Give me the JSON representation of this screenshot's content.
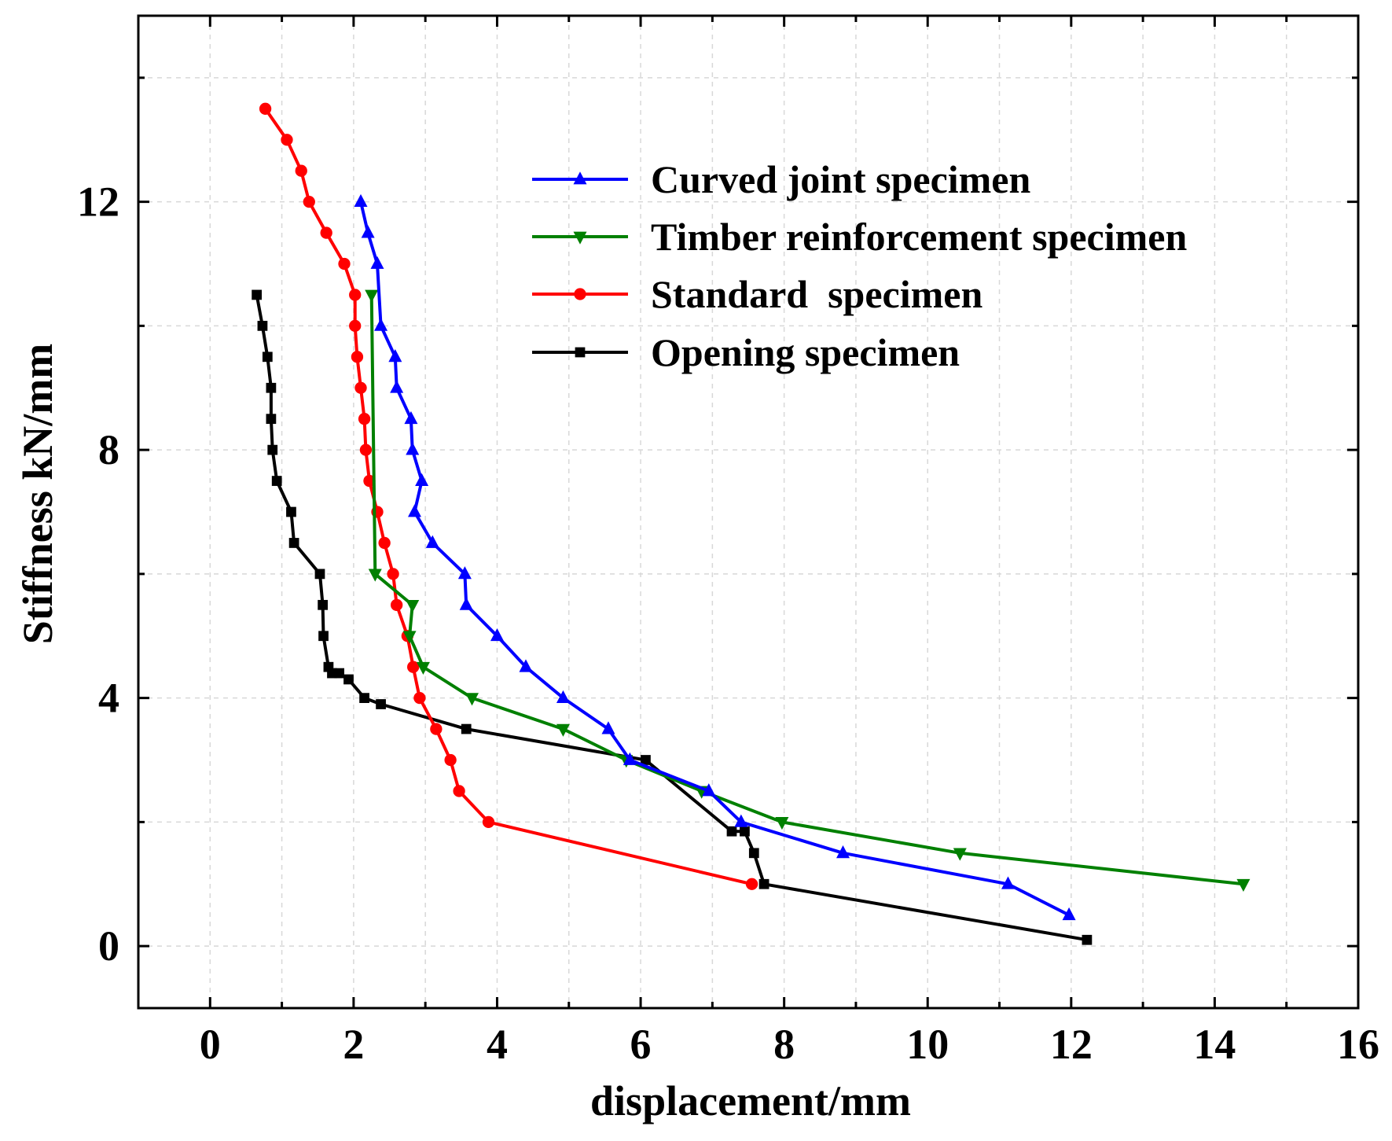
{
  "chart_data": {
    "type": "line",
    "title": "",
    "xlabel": "displacement/mm",
    "ylabel": "Stiffness kN/mm",
    "xlim": [
      -1,
      16
    ],
    "ylim": [
      -1,
      15
    ],
    "x_ticks": [
      0,
      2,
      4,
      6,
      8,
      10,
      12,
      14,
      16
    ],
    "x_tick_labels": [
      "0",
      "2",
      "4",
      "6",
      "8",
      "10",
      "12",
      "14",
      "16"
    ],
    "y_ticks": [
      0,
      4,
      8,
      12
    ],
    "y_tick_labels": [
      "0",
      "4",
      "8",
      "12"
    ],
    "grid": true,
    "legend_position": "top-right",
    "series": [
      {
        "name": "Curved joint specimen",
        "color": "#0000ff",
        "marker": "triangle-up",
        "points": [
          [
            2.1,
            12.0
          ],
          [
            2.2,
            11.5
          ],
          [
            2.33,
            11.0
          ],
          [
            2.38,
            10.0
          ],
          [
            2.58,
            9.5
          ],
          [
            2.6,
            9.0
          ],
          [
            2.8,
            8.5
          ],
          [
            2.82,
            8.0
          ],
          [
            2.95,
            7.5
          ],
          [
            2.85,
            7.0
          ],
          [
            3.1,
            6.5
          ],
          [
            3.55,
            6.0
          ],
          [
            3.57,
            5.5
          ],
          [
            4.0,
            5.0
          ],
          [
            4.4,
            4.5
          ],
          [
            4.92,
            4.0
          ],
          [
            5.55,
            3.5
          ],
          [
            5.85,
            3.0
          ],
          [
            6.95,
            2.5
          ],
          [
            7.4,
            2.0
          ],
          [
            8.82,
            1.5
          ],
          [
            11.12,
            1.0
          ],
          [
            11.97,
            0.5
          ]
        ]
      },
      {
        "name": "Timber reinforcement specimen",
        "color": "#008000",
        "marker": "triangle-down",
        "points": [
          [
            2.25,
            10.5
          ],
          [
            2.3,
            6.0
          ],
          [
            2.82,
            5.5
          ],
          [
            2.78,
            5.0
          ],
          [
            2.97,
            4.5
          ],
          [
            3.65,
            4.0
          ],
          [
            4.92,
            3.5
          ],
          [
            5.8,
            3.0
          ],
          [
            6.85,
            2.5
          ],
          [
            7.97,
            2.0
          ],
          [
            10.45,
            1.5
          ],
          [
            14.4,
            1.0
          ]
        ]
      },
      {
        "name": "Standard  specimen",
        "color": "#ff0000",
        "marker": "circle",
        "points": [
          [
            0.77,
            13.5
          ],
          [
            1.07,
            13.0
          ],
          [
            1.27,
            12.5
          ],
          [
            1.38,
            12.0
          ],
          [
            1.62,
            11.5
          ],
          [
            1.87,
            11.0
          ],
          [
            2.02,
            10.5
          ],
          [
            2.02,
            10.0
          ],
          [
            2.05,
            9.5
          ],
          [
            2.1,
            9.0
          ],
          [
            2.15,
            8.5
          ],
          [
            2.17,
            8.0
          ],
          [
            2.22,
            7.5
          ],
          [
            2.33,
            7.0
          ],
          [
            2.43,
            6.5
          ],
          [
            2.55,
            6.0
          ],
          [
            2.6,
            5.5
          ],
          [
            2.75,
            5.0
          ],
          [
            2.83,
            4.5
          ],
          [
            2.92,
            4.0
          ],
          [
            3.15,
            3.5
          ],
          [
            3.35,
            3.0
          ],
          [
            3.47,
            2.5
          ],
          [
            3.88,
            2.0
          ],
          [
            7.55,
            1.0
          ]
        ]
      },
      {
        "name": "Opening specimen",
        "color": "#000000",
        "marker": "square",
        "points": [
          [
            0.65,
            10.5
          ],
          [
            0.73,
            10.0
          ],
          [
            0.8,
            9.5
          ],
          [
            0.85,
            9.0
          ],
          [
            0.85,
            8.5
          ],
          [
            0.87,
            8.0
          ],
          [
            0.93,
            7.5
          ],
          [
            1.13,
            7.0
          ],
          [
            1.17,
            6.5
          ],
          [
            1.53,
            6.0
          ],
          [
            1.57,
            5.5
          ],
          [
            1.58,
            5.0
          ],
          [
            1.65,
            4.5
          ],
          [
            1.7,
            4.4
          ],
          [
            1.8,
            4.4
          ],
          [
            1.93,
            4.3
          ],
          [
            2.15,
            4.0
          ],
          [
            2.38,
            3.9
          ],
          [
            3.57,
            3.5
          ],
          [
            6.07,
            3.0
          ],
          [
            7.27,
            1.85
          ],
          [
            7.45,
            1.85
          ],
          [
            7.58,
            1.5
          ],
          [
            7.72,
            1.0
          ],
          [
            12.22,
            0.1
          ]
        ]
      }
    ]
  }
}
